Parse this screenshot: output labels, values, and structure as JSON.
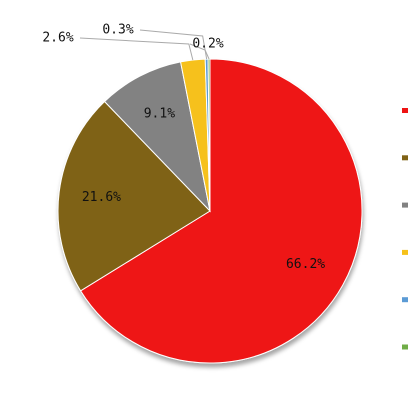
{
  "chart_data": {
    "type": "pie",
    "values": [
      66.2,
      21.6,
      9.1,
      2.6,
      0.3,
      0.2
    ],
    "value_labels": [
      "66.2%",
      "21.6%",
      "9.1%",
      "2.6%",
      "0.3%",
      "0.2%"
    ],
    "colors": [
      "#ee1313",
      "#7f6215",
      "#828282",
      "#f6c11a",
      "#5b9bd5",
      "#70ad47"
    ],
    "legend": "right"
  }
}
